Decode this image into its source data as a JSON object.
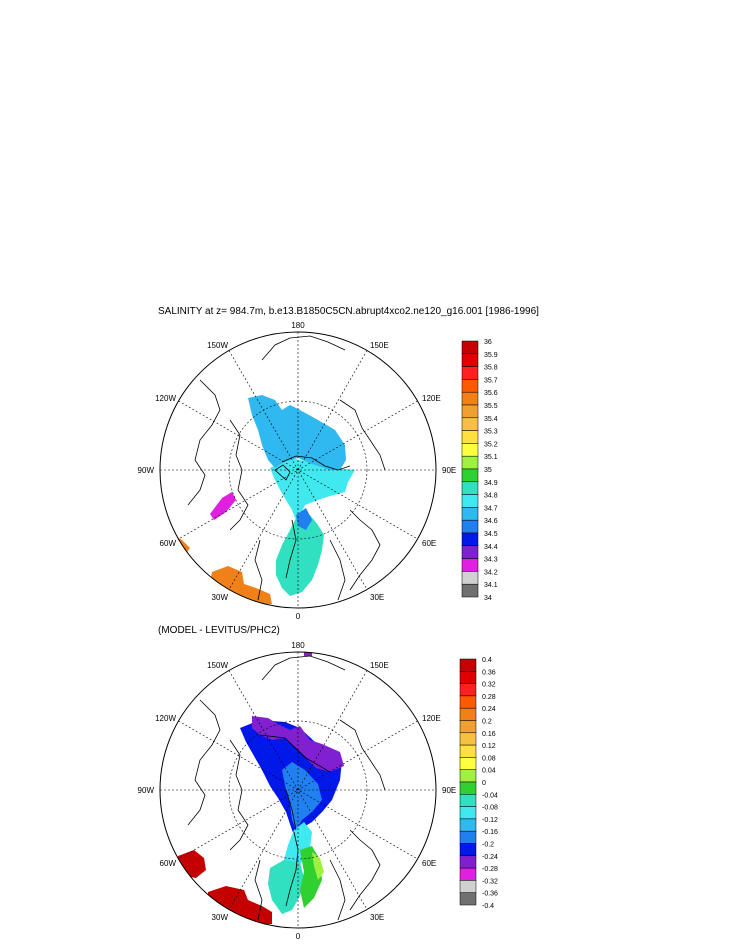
{
  "figure": {
    "title": "SALINITY at z= 984.7m, b.e13.B1850C5CN.abrupt4xco2.ne120_g16.001 [1986-1996]",
    "subtitle": "(MODEL - LEVITUS/PHC2)"
  },
  "map_labels": {
    "top": "180",
    "bottom": "0",
    "left": "90W",
    "right": "90E",
    "upper_left_outer": "150W",
    "upper_right_outer": "150E",
    "upper_left_inner": "120W",
    "upper_right_inner": "120E",
    "lower_left_inner": "60W",
    "lower_right_inner": "60E",
    "lower_left_outer": "30W",
    "lower_right_outer": "30E"
  },
  "legend_top": {
    "labels": [
      "36",
      "35.9",
      "35.8",
      "35.7",
      "35.6",
      "35.5",
      "35.4",
      "35.3",
      "35.2",
      "35.1",
      "35",
      "34.9",
      "34.8",
      "34.7",
      "34.6",
      "34.5",
      "34.4",
      "34.3",
      "34.2",
      "34.1",
      "34"
    ],
    "colors": [
      "#c40000",
      "#e00000",
      "#ff2020",
      "#ff5a00",
      "#f08018",
      "#f0a030",
      "#f8c040",
      "#ffe040",
      "#ffff40",
      "#a0f040",
      "#30d030",
      "#30e0c0",
      "#40e8f0",
      "#30b8f0",
      "#2080f0",
      "#0018e8",
      "#8020d0",
      "#e020e0",
      "#d0d0d0",
      "#707070"
    ]
  },
  "legend_bottom": {
    "labels": [
      "0.4",
      "0.36",
      "0.32",
      "0.28",
      "0.24",
      "0.2",
      "0.16",
      "0.12",
      "0.08",
      "0.04",
      "0",
      "-0.04",
      "-0.08",
      "-0.12",
      "-0.16",
      "-0.2",
      "-0.24",
      "-0.28",
      "-0.32",
      "-0.36",
      "-0.4"
    ],
    "colors": [
      "#c40000",
      "#e00000",
      "#ff2020",
      "#ff5a00",
      "#f08018",
      "#f0a030",
      "#f8c040",
      "#ffe040",
      "#ffff40",
      "#a0f040",
      "#30d030",
      "#30e0c0",
      "#40e8f0",
      "#30b8f0",
      "#2080f0",
      "#0018e8",
      "#8020d0",
      "#e020e0",
      "#d0d0d0",
      "#707070"
    ]
  }
}
